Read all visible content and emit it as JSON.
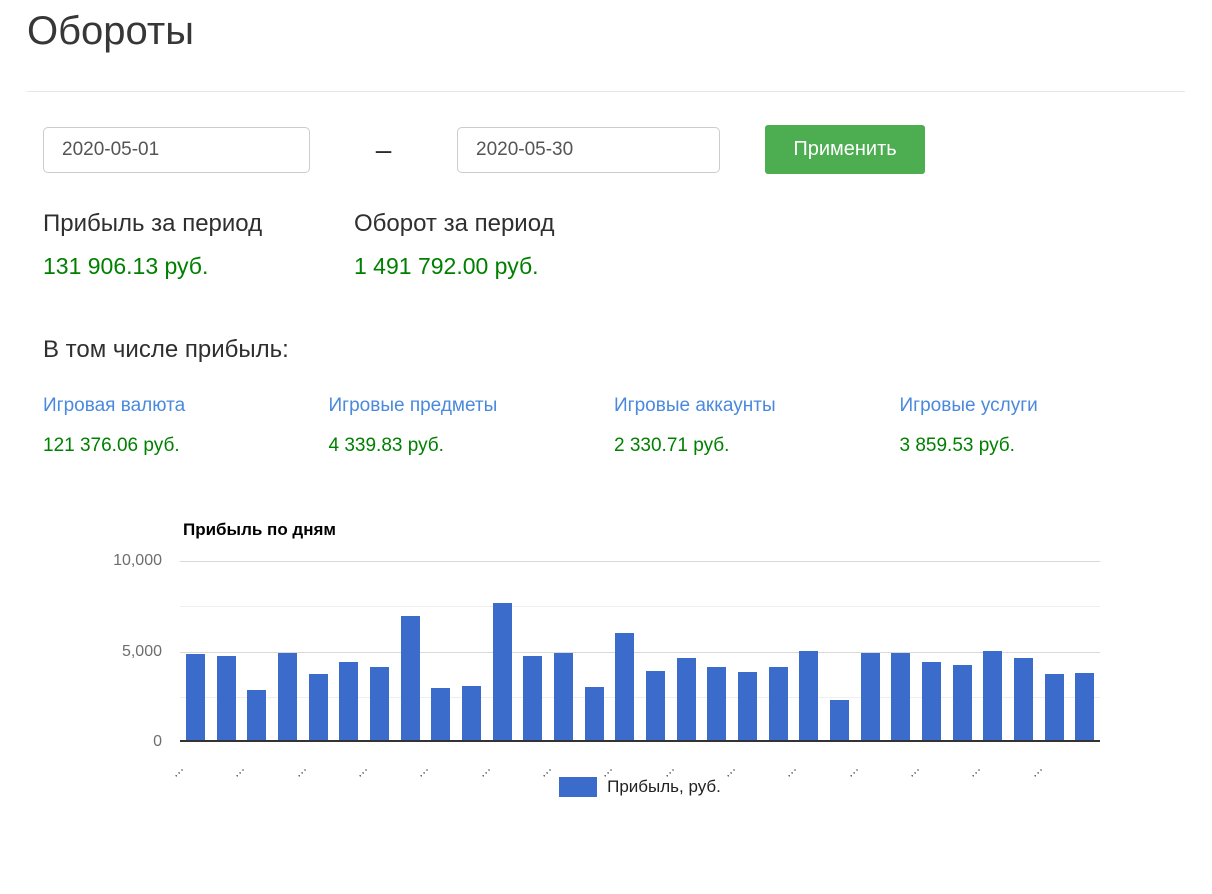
{
  "page": {
    "title": "Обороты"
  },
  "filters": {
    "date_from": "2020-05-01",
    "date_to": "2020-05-30",
    "separator": "–",
    "apply_label": "Применить"
  },
  "summary": {
    "profit_label": "Прибыль за период",
    "profit_value": "131 906.13 руб.",
    "turnover_label": "Оборот за период",
    "turnover_value": "1 491 792.00 руб."
  },
  "breakdown": {
    "title": "В том числе прибыль:",
    "items": [
      {
        "label": "Игровая валюта",
        "value": "121 376.06 руб."
      },
      {
        "label": "Игровые предметы",
        "value": "4 339.83 руб."
      },
      {
        "label": "Игровые аккаунты",
        "value": "2 330.71 руб."
      },
      {
        "label": "Игровые услуги",
        "value": "3 859.53 руб."
      }
    ]
  },
  "colors": {
    "apply_button_green": "#4dae51",
    "value_green": "#008000",
    "link_blue": "#4a89dc",
    "bar_blue": "#3b6ccb"
  },
  "chart_data": {
    "type": "bar",
    "title": "Прибыль по дням",
    "series_label": "Прибыль, руб.",
    "values": [
      4750,
      4650,
      2750,
      4800,
      3650,
      4300,
      4050,
      6850,
      2850,
      3000,
      7550,
      4650,
      4800,
      2950,
      5900,
      3800,
      4550,
      4050,
      3750,
      4050,
      4900,
      2200,
      4800,
      4800,
      4300,
      4150,
      4900,
      4550,
      3650,
      3700
    ],
    "ylim": [
      0,
      10000
    ],
    "y_major_ticks": [
      10000,
      5000,
      0
    ],
    "y_tick_labels": [
      "10,000",
      "5,000",
      "0"
    ],
    "y_minor_gridlines": [
      7500,
      2500
    ],
    "x_tick_labels": [
      "…",
      "…",
      "…",
      "…",
      "…",
      "…",
      "…",
      "…",
      "…",
      "…",
      "…",
      "…",
      "…",
      "…",
      "…"
    ],
    "bar_color": "#3b6ccb",
    "grid": true,
    "legend_position": "bottom"
  }
}
